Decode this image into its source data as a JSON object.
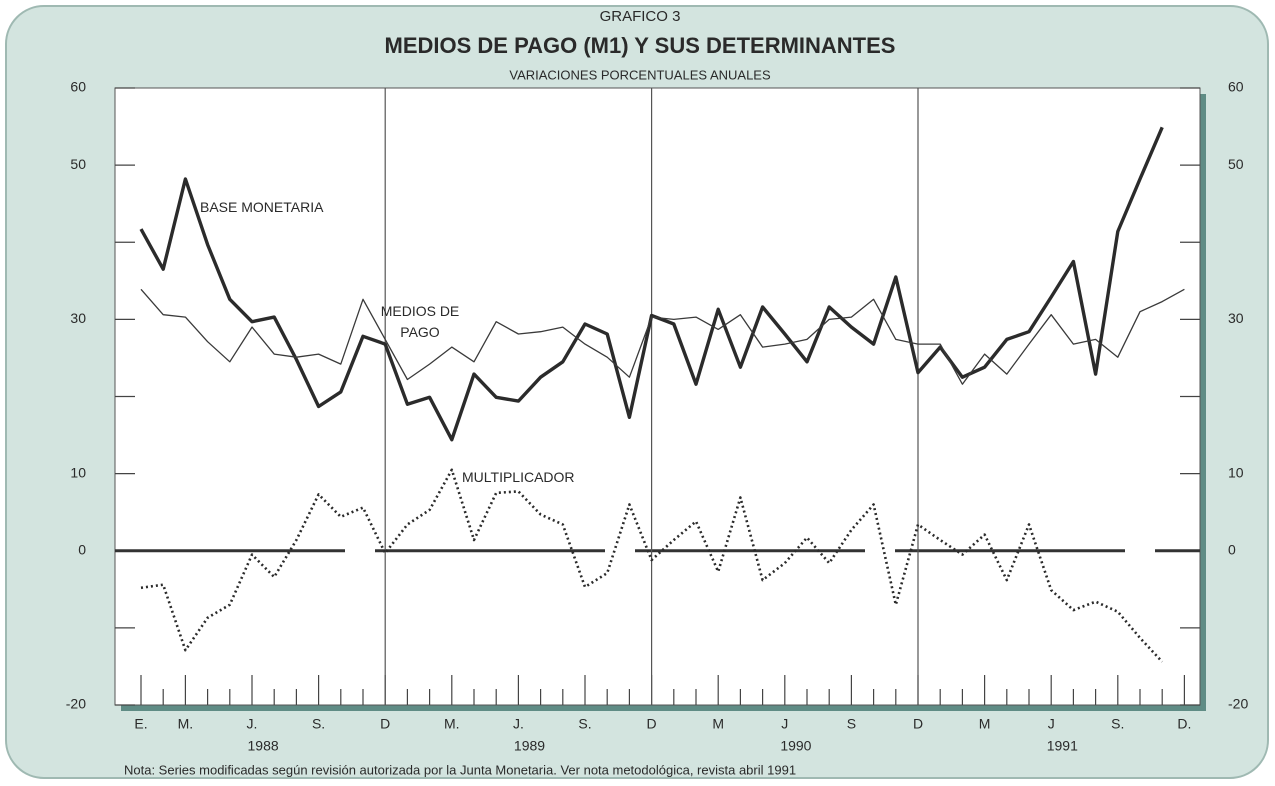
{
  "chart_data": {
    "type": "line",
    "supertitle": "GRAFICO 3",
    "title": "MEDIOS DE PAGO (M1) Y SUS DETERMINANTES",
    "subtitle": "VARIACIONES PORCENTUALES ANUALES",
    "note": "Nota: Series modificadas según revisión autorizada por la Junta Monetaria. Ver nota metodológica, revista abril 1991",
    "categories": [
      "E.",
      null,
      "M.",
      null,
      null,
      "J.",
      null,
      null,
      "S.",
      null,
      null,
      "D",
      null,
      null,
      "M.",
      null,
      null,
      "J.",
      null,
      null,
      "S.",
      null,
      null,
      "D",
      null,
      null,
      "M",
      null,
      null,
      "J",
      null,
      null,
      "S",
      null,
      null,
      "D",
      null,
      null,
      "M",
      null,
      null,
      "J",
      null,
      null,
      "S.",
      null,
      null,
      "D."
    ],
    "years": [
      "1988",
      "1989",
      "1990",
      "1991"
    ],
    "ylim": [
      -20,
      60
    ],
    "yticks": [
      -20,
      0,
      10,
      30,
      50,
      60
    ],
    "minor_yticks": [
      -10,
      20,
      40
    ],
    "series": [
      {
        "name": "BASE MONETARIA",
        "color": "#2b2b2b",
        "values": [
          41.7,
          36.5,
          48.2,
          39.7,
          32.6,
          29.7,
          30.3,
          24.8,
          18.7,
          20.6,
          27.8,
          26.8,
          19.0,
          19.9,
          14.4,
          22.9,
          19.9,
          19.4,
          22.5,
          24.5,
          29.4,
          28.1,
          17.3,
          30.5,
          29.4,
          21.6,
          31.3,
          23.8,
          31.6,
          28.1,
          24.5,
          31.6,
          29.0,
          26.8,
          35.5,
          23.1,
          26.4,
          22.5,
          23.8,
          27.4,
          28.4,
          32.9,
          37.5,
          22.9,
          41.4,
          48.2,
          54.9,
          null
        ]
      },
      {
        "name": "MEDIOS DE PAGO",
        "color": "#3a3a3a",
        "values": [
          33.9,
          30.6,
          30.3,
          27.1,
          24.5,
          29.0,
          25.5,
          25.1,
          25.5,
          24.2,
          32.6,
          27.4,
          22.2,
          24.2,
          26.4,
          24.5,
          29.7,
          28.1,
          28.4,
          29.0,
          26.8,
          25.1,
          22.5,
          30.3,
          30.0,
          30.3,
          28.7,
          30.6,
          26.4,
          26.8,
          27.4,
          30.0,
          30.3,
          32.6,
          27.4,
          26.8,
          26.8,
          21.6,
          25.5,
          22.9,
          26.8,
          30.6,
          26.8,
          27.4,
          25.1,
          31.0,
          32.3,
          33.9
        ]
      },
      {
        "name": "MULTIPLICADOR",
        "color": "#2b2b2b",
        "values": [
          -4.8,
          -4.4,
          -12.9,
          -8.7,
          -7.0,
          -0.5,
          -3.4,
          1.4,
          7.3,
          4.4,
          5.6,
          -0.3,
          3.4,
          5.3,
          10.5,
          1.4,
          7.5,
          7.7,
          4.7,
          3.4,
          -4.7,
          -2.9,
          6.0,
          -1.2,
          1.4,
          3.8,
          -2.7,
          6.9,
          -3.8,
          -1.6,
          1.7,
          -1.6,
          2.7,
          6.0,
          -7.0,
          3.4,
          1.4,
          -0.5,
          2.1,
          -3.8,
          3.4,
          -5.1,
          -7.7,
          -6.6,
          -7.9,
          -11.3,
          -14.4,
          null
        ]
      }
    ]
  }
}
